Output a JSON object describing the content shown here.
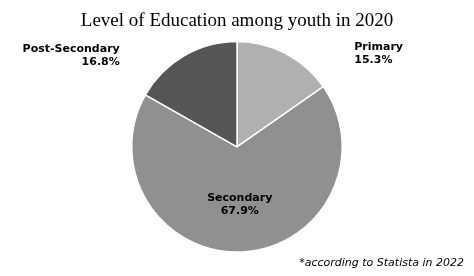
{
  "chart_data": {
    "type": "pie",
    "title": "Level of Education among youth in 2020",
    "annotations": [
      "*according to Statista in 2022"
    ],
    "categories": [
      "Primary",
      "Secondary",
      "Post-Secondary"
    ],
    "values": [
      15.3,
      67.9,
      16.8
    ],
    "value_labels": [
      "15.3%",
      "67.9%",
      "16.8%"
    ],
    "colors": [
      "#b0b0b0",
      "#909090",
      "#555555"
    ],
    "data_labels": true
  }
}
